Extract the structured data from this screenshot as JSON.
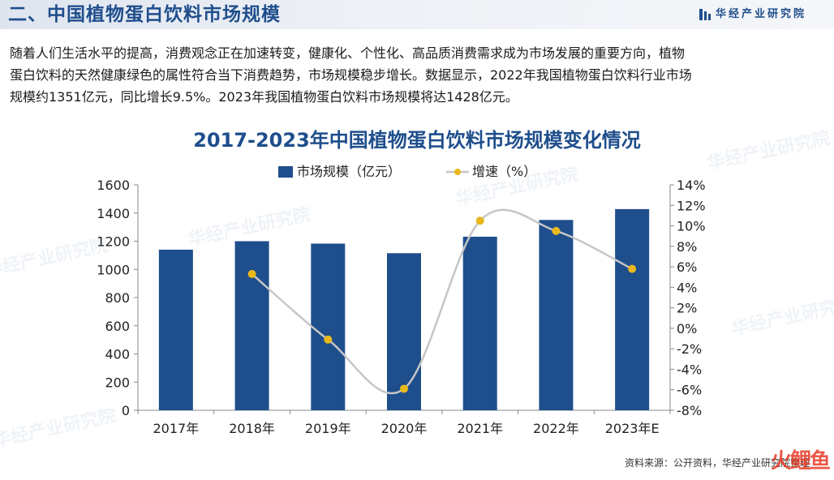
{
  "header": {
    "section_title": "二、中国植物蛋白饮料市场规模",
    "brand": "华经产业研究院"
  },
  "paragraph": {
    "lines": [
      "随着人们生活水平的提高，消费观念正在加速转变，健康化、个性化、高品质消费需求成为市场发展的重要方向，植物",
      "蛋白饮料的天然健康绿色的属性符合当下消费趋势，市场规模稳步增长。数据显示，2022年我国植物蛋白饮料行业市场",
      "规模约1351亿元，同比增长9.5%。2023年我国植物蛋白饮料市场规模将达1428亿元。"
    ]
  },
  "watermark": "华经产业研究院",
  "corner_logo": "火鲤鱼",
  "chart_data": {
    "type": "bar",
    "title": "2017-2023年中国植物蛋白饮料市场规模变化情况",
    "categories": [
      "2017年",
      "2018年",
      "2019年",
      "2020年",
      "2021年",
      "2022年",
      "2023年E"
    ],
    "series": [
      {
        "name": "市场规模（亿元）",
        "type": "bar",
        "axis": "left",
        "color": "#1f4e8c",
        "values": [
          1140,
          1200,
          1183,
          1115,
          1232,
          1351,
          1428
        ]
      },
      {
        "name": "增速（%）",
        "type": "line",
        "axis": "right",
        "color": "#c6c6c6",
        "marker_color": "#e8b81c",
        "values": [
          null,
          5.3,
          -1.1,
          -5.9,
          10.5,
          9.5,
          5.8
        ]
      }
    ],
    "left_axis": {
      "ylim": [
        0,
        1600
      ],
      "ticks": [
        "0",
        "200",
        "400",
        "600",
        "800",
        "1000",
        "1200",
        "1400",
        "1600"
      ]
    },
    "right_axis": {
      "ylim": [
        -8,
        14
      ],
      "ticks": [
        "-8%",
        "-6%",
        "-4%",
        "-2%",
        "0%",
        "2%",
        "4%",
        "6%",
        "8%",
        "10%",
        "12%",
        "14%"
      ]
    },
    "legend_position": "top-center",
    "grid": false,
    "source": "资料来源：公开资料，华经产业研究院整理"
  }
}
